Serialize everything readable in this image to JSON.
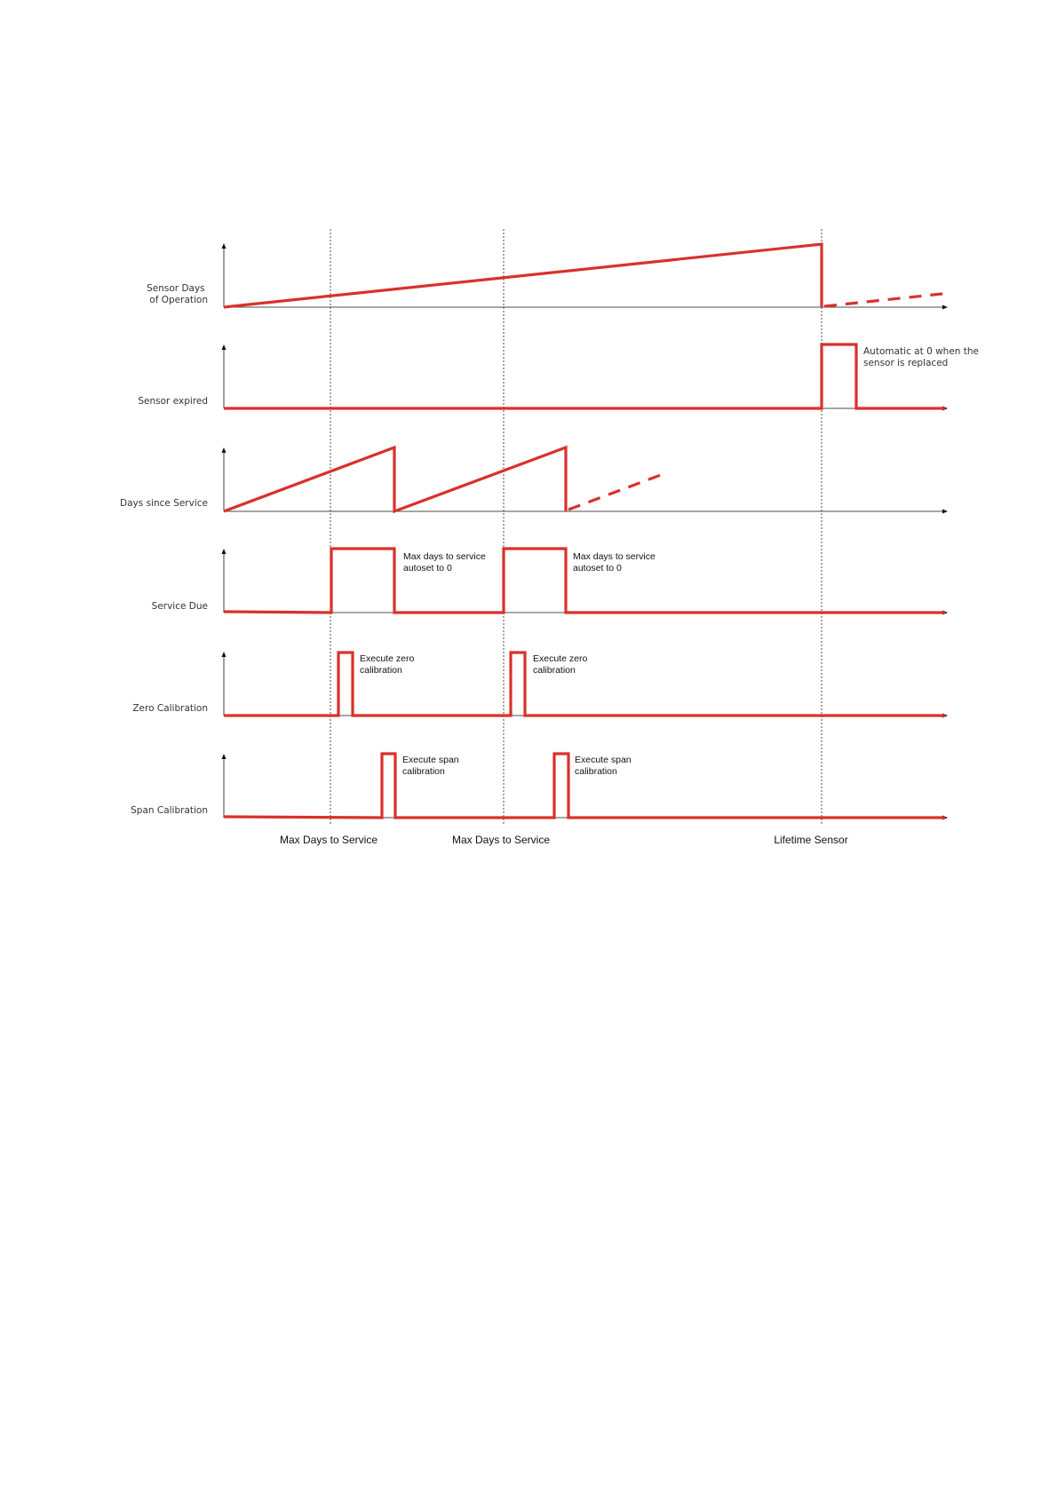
{
  "rows": [
    {
      "id": "sensor-days",
      "label_lines": [
        "Sensor Days",
        "of Operation"
      ]
    },
    {
      "id": "sensor-expired",
      "label_lines": [
        "Sensor expired"
      ]
    },
    {
      "id": "days-since-service",
      "label_lines": [
        "Days since Service"
      ]
    },
    {
      "id": "service-due",
      "label_lines": [
        "Service  Due"
      ]
    },
    {
      "id": "zero-calibration",
      "label_lines": [
        "Zero Calibration"
      ]
    },
    {
      "id": "span-calibration",
      "label_lines": [
        "Span Calibration"
      ]
    }
  ],
  "annotations": {
    "sensor_replaced": [
      "Automatic at 0 when the",
      "sensor is replaced"
    ],
    "service_autoset_1": [
      "Max days to service",
      "autoset to 0"
    ],
    "service_autoset_2": [
      "Max days to service",
      "autoset to 0"
    ],
    "zero_cal_1": [
      "Execute zero",
      "calibration"
    ],
    "zero_cal_2": [
      "Execute zero",
      "calibration"
    ],
    "span_cal_1": [
      "Execute span",
      "calibration"
    ],
    "span_cal_2": [
      "Execute span",
      "calibration"
    ]
  },
  "markers": [
    {
      "id": "max-days-1",
      "label": "Max Days to Service"
    },
    {
      "id": "max-days-2",
      "label": "Max Days to Service"
    },
    {
      "id": "lifetime",
      "label": "Lifetime Sensor"
    }
  ],
  "colors": {
    "signal": "#d9312b",
    "axis": "#111111"
  }
}
